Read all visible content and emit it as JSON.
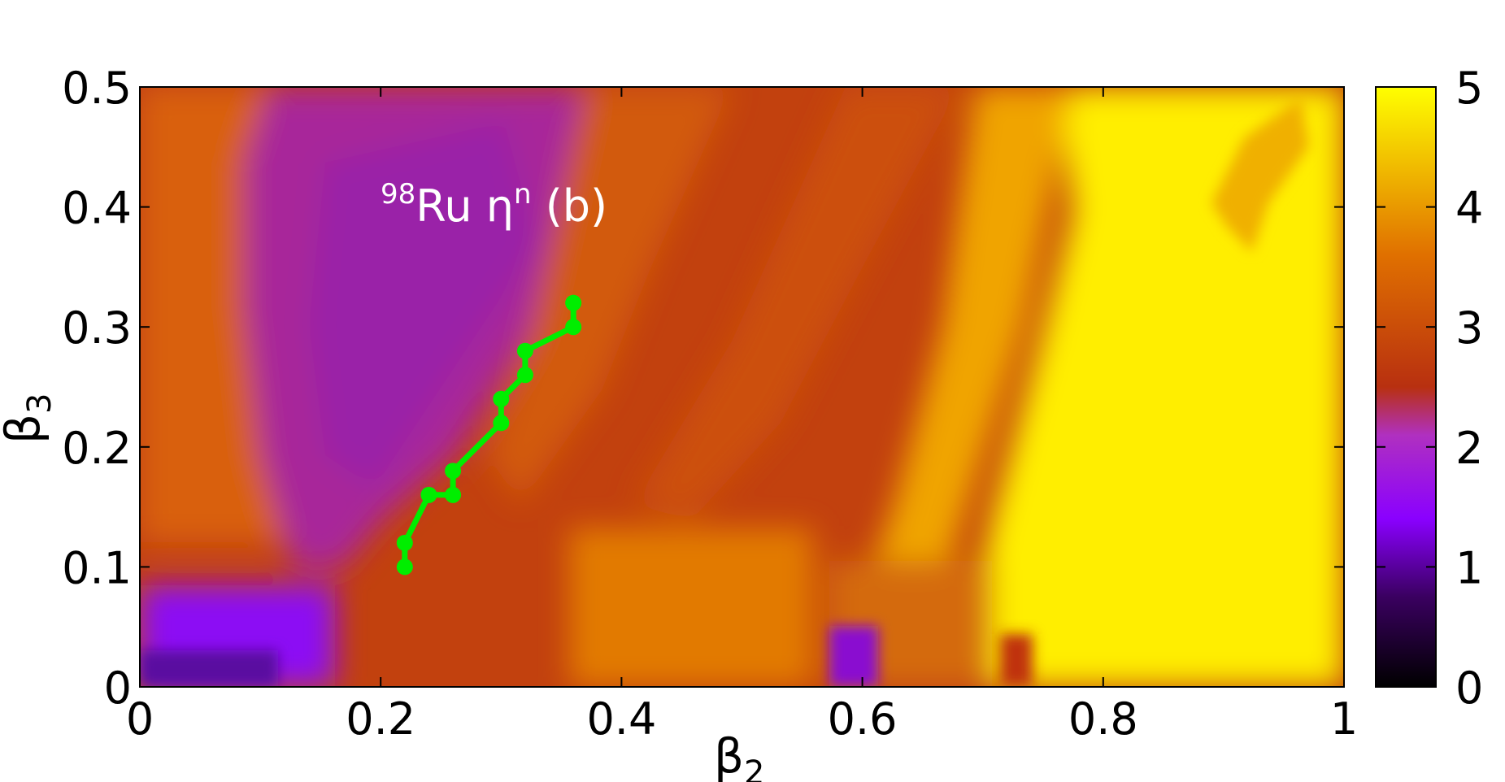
{
  "chart_data": {
    "type": "heatmap",
    "title": "",
    "annotation": {
      "sup": "98",
      "main": "Ru η",
      "sup2": "n",
      "tail": " (b)"
    },
    "xlabel": {
      "main": "β",
      "sub": "2"
    },
    "ylabel": {
      "main": "β",
      "sub": "3"
    },
    "xlim": [
      0,
      1
    ],
    "ylim": [
      0,
      0.5
    ],
    "x_ticks": [
      0,
      0.2,
      0.4,
      0.6,
      0.8,
      1
    ],
    "x_tick_labels": [
      "0",
      "0.2",
      "0.4",
      "0.6",
      "0.8",
      "1"
    ],
    "y_ticks": [
      0,
      0.1,
      0.2,
      0.3,
      0.4,
      0.5
    ],
    "y_tick_labels": [
      "0",
      "0.1",
      "0.2",
      "0.3",
      "0.4",
      "0.5"
    ],
    "colorbar": {
      "range": [
        0,
        5
      ],
      "ticks": [
        0,
        1,
        2,
        3,
        4,
        5
      ],
      "tick_labels": [
        "0",
        "1",
        "2",
        "3",
        "4",
        "5"
      ],
      "colormap": [
        "#000000",
        "#3a0060",
        "#8a00ff",
        "#b030c0",
        "#b83010",
        "#e07000",
        "#ffff00"
      ]
    },
    "path": {
      "color": "#00ee00",
      "points": [
        [
          0.22,
          0.1
        ],
        [
          0.22,
          0.12
        ],
        [
          0.24,
          0.16
        ],
        [
          0.26,
          0.16
        ],
        [
          0.26,
          0.18
        ],
        [
          0.3,
          0.22
        ],
        [
          0.3,
          0.24
        ],
        [
          0.32,
          0.26
        ],
        [
          0.32,
          0.28
        ],
        [
          0.36,
          0.3
        ],
        [
          0.36,
          0.32
        ]
      ]
    },
    "grid": false
  }
}
